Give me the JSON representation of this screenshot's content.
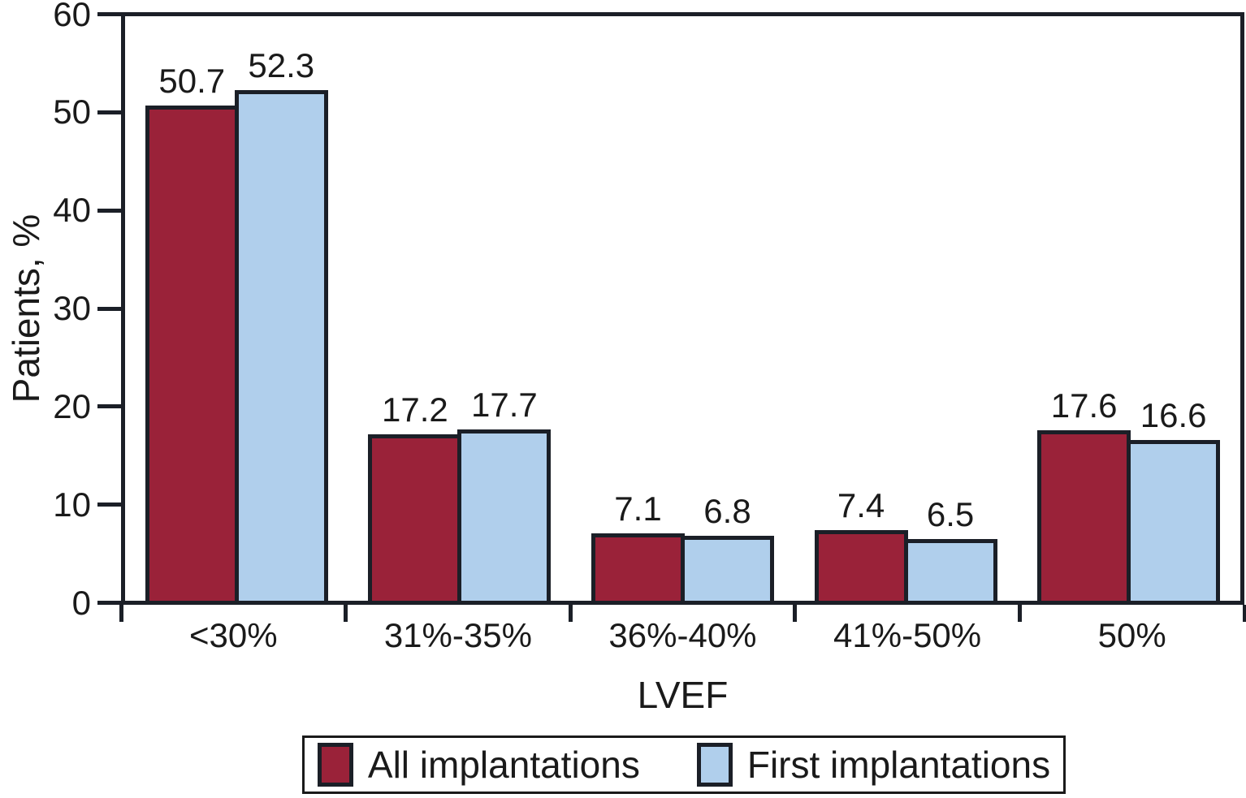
{
  "chart_data": {
    "type": "bar",
    "title": "",
    "categories": [
      "<30%",
      "31%-35%",
      "36%-40%",
      "41%-50%",
      "50%"
    ],
    "series": [
      {
        "name": "All implantations",
        "color": "#9A2239",
        "values": [
          50.7,
          17.2,
          7.1,
          7.4,
          17.6
        ]
      },
      {
        "name": "First implantations",
        "color": "#B0CFEC",
        "values": [
          52.3,
          17.7,
          6.8,
          6.5,
          16.6
        ]
      }
    ],
    "xlabel": "LVEF",
    "ylabel": "Patients, %",
    "ylim": [
      0,
      60
    ],
    "yticks": [
      0,
      10,
      20,
      30,
      40,
      50,
      60
    ],
    "grid": false,
    "legend_position": "bottom",
    "value_labels": true,
    "value_label_format": "one-decimal"
  },
  "styles": {
    "stroke": "#1b1f27",
    "text": "#1a1a1a",
    "background": "#ffffff"
  }
}
